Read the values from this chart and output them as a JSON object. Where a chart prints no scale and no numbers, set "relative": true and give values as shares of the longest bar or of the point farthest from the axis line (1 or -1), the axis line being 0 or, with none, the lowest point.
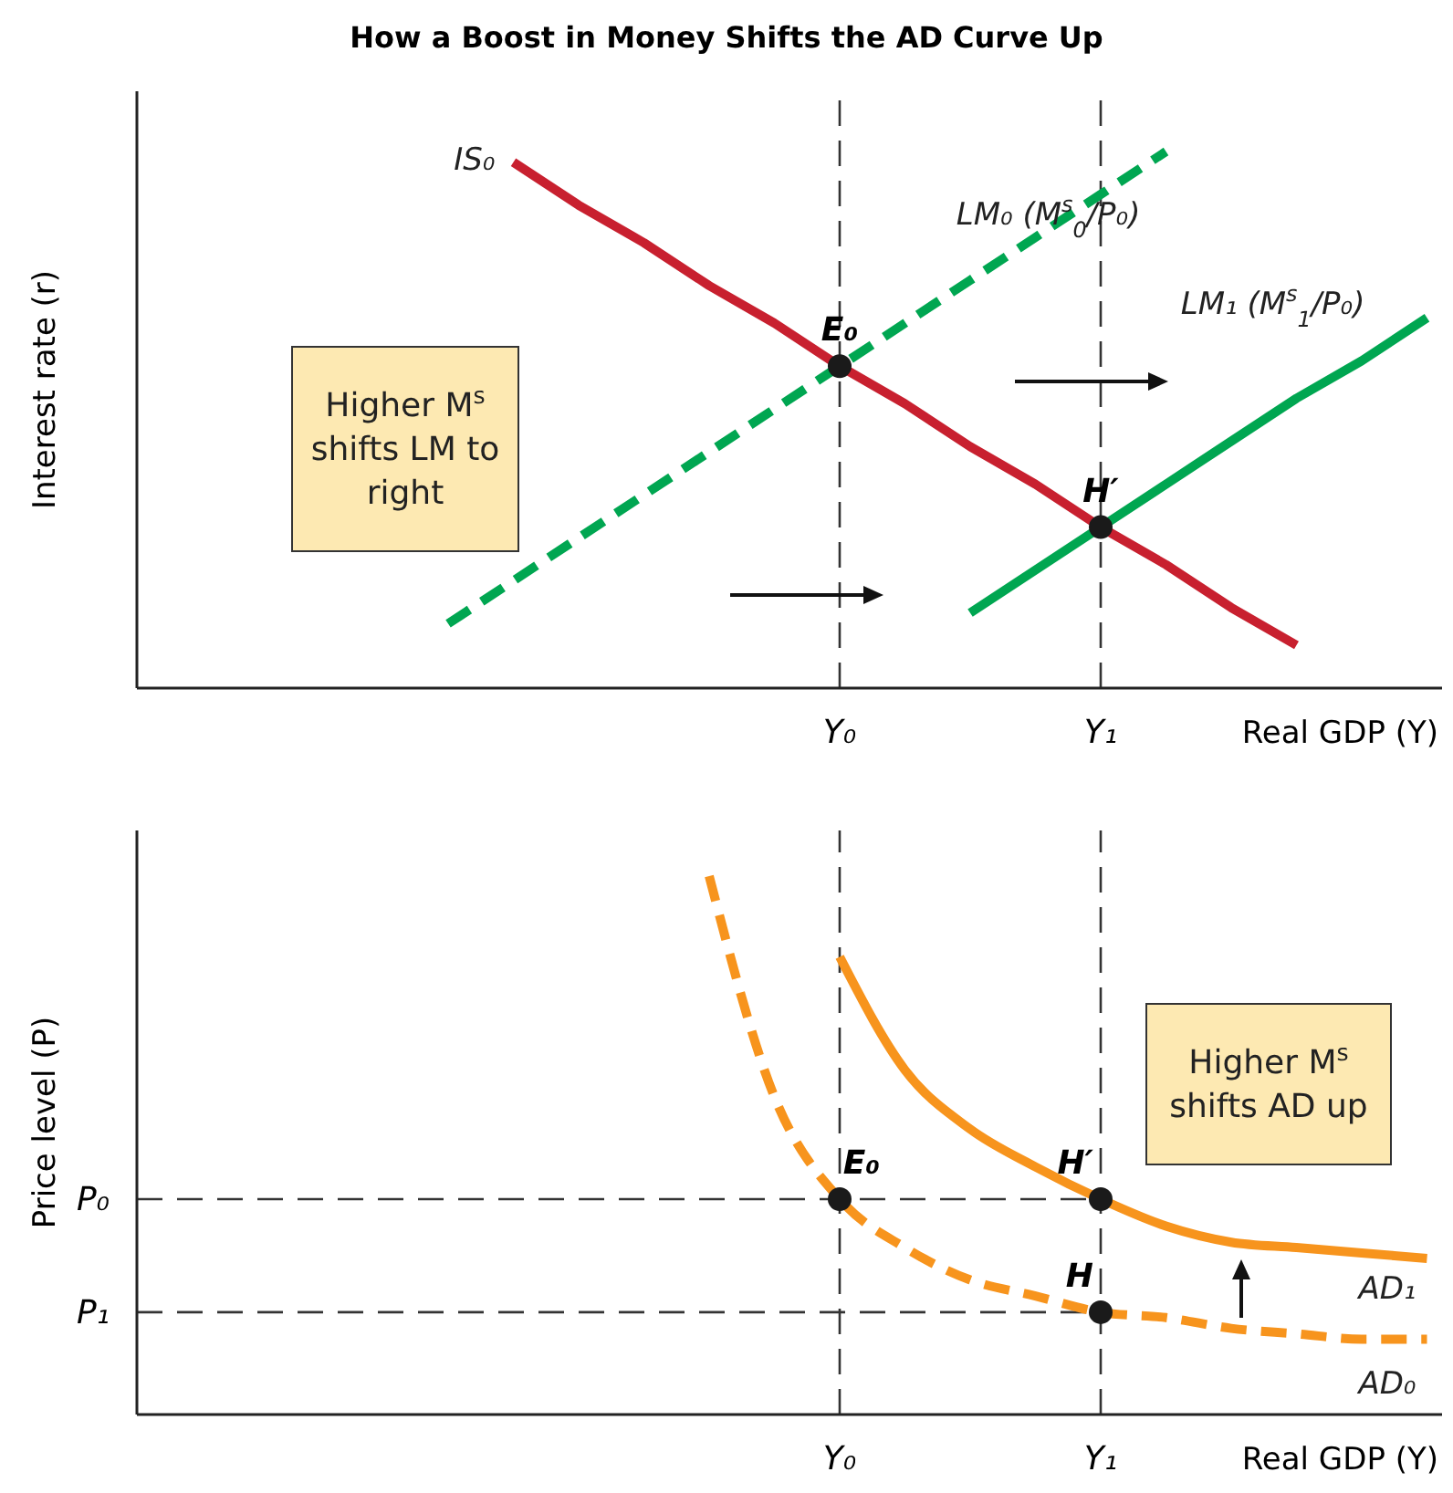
{
  "chart_data": [
    {
      "type": "line",
      "title": "How a Boost in Money Shifts the AD Curve Up",
      "xlabel": "Real GDP (Y)",
      "ylabel": "Interest rate (r)",
      "relative": true,
      "categories": [
        null,
        null,
        null,
        null,
        null,
        null,
        null,
        null,
        null,
        null,
        "Y₀",
        null,
        null,
        null,
        "Y₁",
        null,
        null,
        null,
        null,
        null
      ],
      "series": [
        {
          "name": "IS₀",
          "color": "#c8202f",
          "line_style": "solid",
          "values": [
            null,
            null,
            null,
            null,
            null,
            0.98,
            0.9,
            0.83,
            0.75,
            0.68,
            0.6,
            0.53,
            0.45,
            0.38,
            0.3,
            0.23,
            0.15,
            0.08,
            null,
            null
          ]
        },
        {
          "name": "LM₀ (M$^{s}$$_{0}$/P₀)",
          "color": "#00a651",
          "line_style": "dashed",
          "values": [
            null,
            null,
            null,
            null,
            0.12,
            0.2,
            0.28,
            0.36,
            0.44,
            0.52,
            0.6,
            0.68,
            0.76,
            0.84,
            0.92,
            1.0,
            null,
            null,
            null,
            null
          ]
        },
        {
          "name": "LM₁ (M$^{s}$$_{1}$/P₀)",
          "color": "#00a651",
          "line_style": "solid",
          "values": [
            null,
            null,
            null,
            null,
            null,
            null,
            null,
            null,
            null,
            null,
            null,
            null,
            0.14,
            0.22,
            0.3,
            0.38,
            0.46,
            0.54,
            0.61,
            0.69
          ]
        },
        {
          "type": "scatter",
          "color": "#1a1a1a",
          "values": [
            null,
            null,
            null,
            null,
            null,
            null,
            null,
            null,
            null,
            null,
            0.6,
            null,
            null,
            null,
            0.3,
            null,
            null,
            null,
            null,
            null
          ]
        }
      ],
      "ref_lines": [
        {
          "axis": "x",
          "value": "Y₀",
          "line_style": "dashed"
        },
        {
          "axis": "x",
          "value": "Y₁",
          "line_style": "dashed"
        }
      ],
      "annotations": [
        {
          "text": "E₀",
          "x": "Y₀",
          "y": 0.6
        },
        {
          "text": "H′",
          "x": "Y₁",
          "y": 0.3
        },
        "Higher M$^{s}$ shifts LM to right"
      ]
    },
    {
      "type": "line",
      "xlabel": "Real GDP (Y)",
      "ylabel": "Price level (P)",
      "relative": true,
      "categories": [
        null,
        null,
        null,
        null,
        null,
        null,
        null,
        null,
        null,
        null,
        "Y₀",
        null,
        null,
        null,
        "Y₁",
        null,
        null,
        null,
        null,
        null
      ],
      "series": [
        {
          "name": "AD₀",
          "color": "#f7941d",
          "line_style": "dashed",
          "values": [
            null,
            null,
            null,
            null,
            null,
            null,
            null,
            null,
            1.0,
            0.59,
            0.4,
            0.31,
            0.25,
            0.22,
            0.19,
            0.18,
            0.16,
            0.15,
            0.14,
            0.14
          ]
        },
        {
          "name": "AD₁",
          "color": "#f7941d",
          "line_style": "solid",
          "values": [
            null,
            null,
            null,
            null,
            null,
            null,
            null,
            null,
            null,
            null,
            0.85,
            0.64,
            0.53,
            0.46,
            0.4,
            0.35,
            0.32,
            0.31,
            0.3,
            0.29
          ]
        },
        {
          "type": "scatter",
          "color": "#1a1a1a",
          "values": [
            null,
            null,
            null,
            null,
            null,
            null,
            null,
            null,
            null,
            null,
            0.4,
            null,
            null,
            null,
            0.4,
            null,
            null,
            null,
            null,
            null
          ]
        },
        {
          "type": "scatter",
          "color": "#1a1a1a",
          "values": [
            null,
            null,
            null,
            null,
            null,
            null,
            null,
            null,
            null,
            null,
            null,
            null,
            null,
            null,
            0.19,
            null,
            null,
            null,
            null,
            null
          ]
        }
      ],
      "ref_lines": [
        {
          "axis": "x",
          "value": "Y₀",
          "line_style": "dashed"
        },
        {
          "axis": "x",
          "value": "Y₁",
          "line_style": "dashed"
        },
        {
          "axis": "y",
          "value": 0.4,
          "label": "P₀",
          "line_style": "dashed"
        },
        {
          "axis": "y",
          "value": 0.19,
          "label": "P₁",
          "line_style": "dashed"
        }
      ],
      "annotations": [
        {
          "text": "E₀",
          "x": "Y₀",
          "y": 0.4
        },
        {
          "text": "H′",
          "x": "Y₁",
          "y": 0.4
        },
        {
          "text": "H",
          "x": "Y₁",
          "y": 0.19
        },
        "Higher M$^{s}$ shifts AD up"
      ]
    }
  ]
}
